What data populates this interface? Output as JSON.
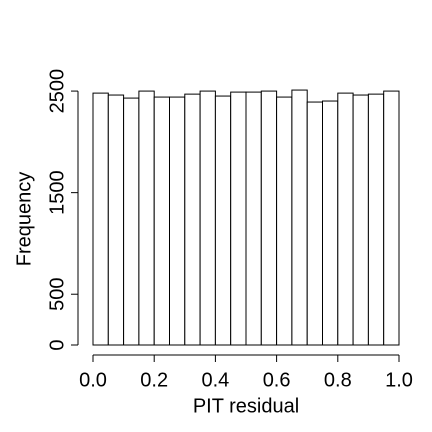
{
  "chart_data": {
    "type": "histogram",
    "x_label": "PIT residual",
    "y_label": "Frequency",
    "bins": [
      0,
      0.05,
      0.1,
      0.15,
      0.2,
      0.25,
      0.3,
      0.35,
      0.4,
      0.45,
      0.5,
      0.55,
      0.6,
      0.65,
      0.7,
      0.75,
      0.8,
      0.85,
      0.9,
      0.95,
      1
    ],
    "values": [
      2480,
      2461,
      2431,
      2500,
      2441,
      2441,
      2470,
      2500,
      2451,
      2490,
      2490,
      2500,
      2441,
      2510,
      2392,
      2402,
      2480,
      2461,
      2470,
      2500
    ],
    "color": "#ffffff",
    "xlim": [
      0,
      1
    ],
    "xticks": [
      {
        "value": 0,
        "label": "0.0"
      },
      0.2,
      0.4,
      0.6,
      0.8,
      {
        "value": 1,
        "label": "1.0"
      }
    ],
    "ylim": [
      0,
      2550
    ],
    "yticks": [
      0,
      500,
      1500,
      2500
    ]
  }
}
